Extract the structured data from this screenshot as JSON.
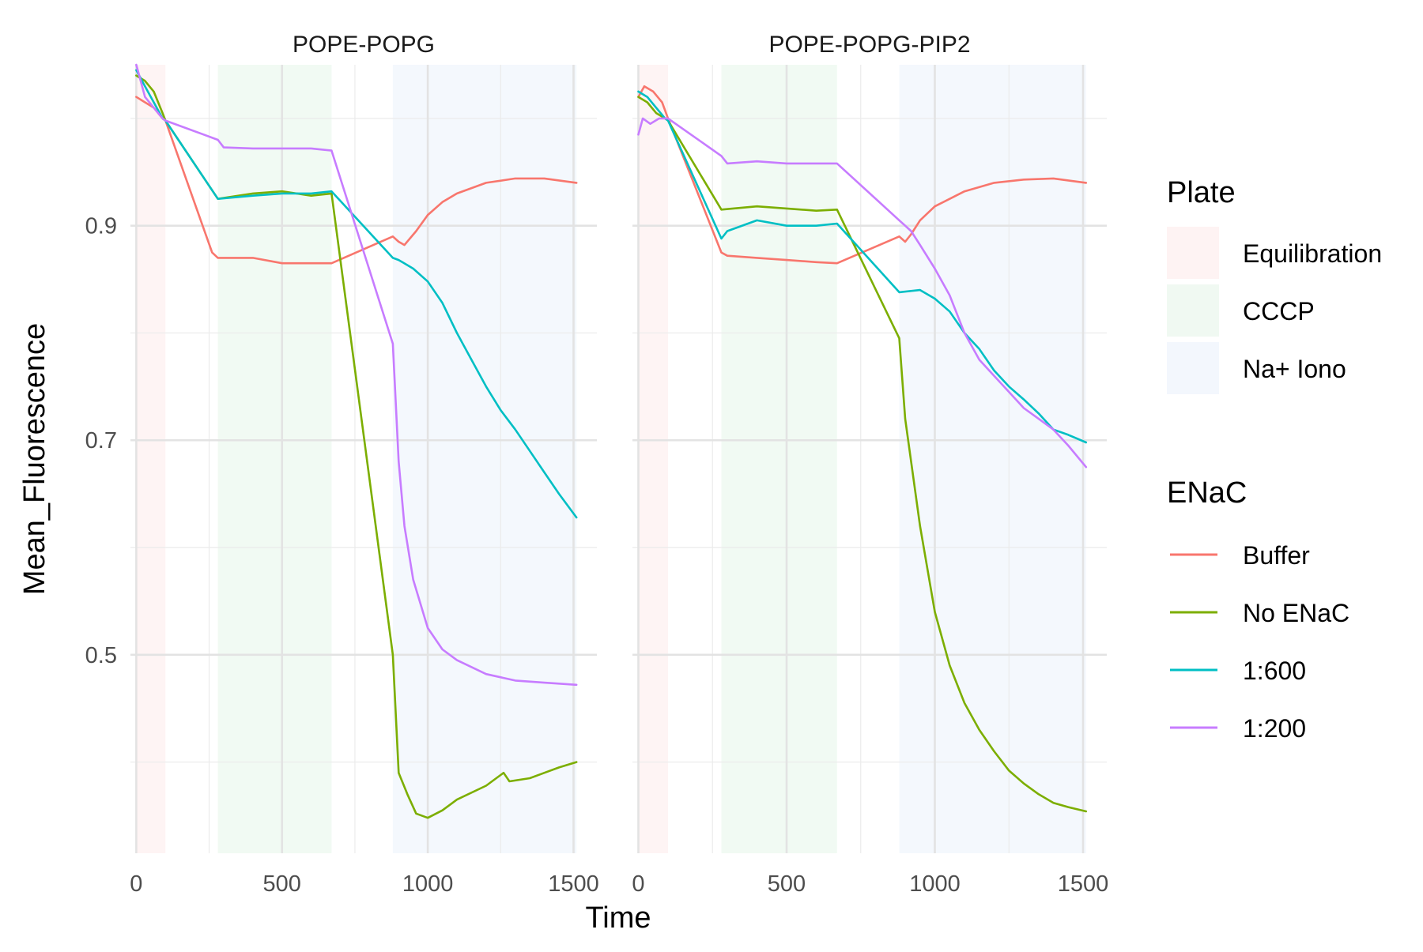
{
  "chart_data": {
    "type": "line",
    "xlabel": "Time",
    "ylabel": "Mean_Fluorescence",
    "xlim": [
      -20,
      1580
    ],
    "ylim": [
      0.315,
      1.05
    ],
    "x_ticks": [
      0,
      500,
      1000,
      1500
    ],
    "y_ticks": [
      0.5,
      0.7,
      0.9
    ],
    "grid": true,
    "legend_position": "right",
    "facets": [
      "POPE-POPG",
      "POPE-POPG-PIP2"
    ],
    "plate": {
      "title": "Plate",
      "entries": [
        {
          "name": "Equilibration",
          "color": "#FDEBEB",
          "x_range": [
            0,
            100
          ]
        },
        {
          "name": "CCCP",
          "color": "#E6F5EA",
          "x_range": [
            280,
            670
          ]
        },
        {
          "name": "Na+ Iono",
          "color": "#EBF2FC",
          "x_range": [
            880,
            1510
          ]
        }
      ]
    },
    "enac": {
      "title": "ENaC",
      "entries": [
        {
          "name": "Buffer",
          "color": "#F8766D"
        },
        {
          "name": "No ENaC",
          "color": "#7CAE00"
        },
        {
          "name": "1:600",
          "color": "#00BFC4"
        },
        {
          "name": "1:200",
          "color": "#C77CFF"
        }
      ]
    },
    "panels": [
      {
        "title": "POPE-POPG",
        "series": [
          {
            "name": "Buffer",
            "color": "#F8766D",
            "points": [
              [
                0,
                1.02
              ],
              [
                30,
                1.015
              ],
              [
                60,
                1.01
              ],
              [
                90,
                1.0
              ],
              [
                100,
                0.998
              ],
              [
                260,
                0.875
              ],
              [
                280,
                0.87
              ],
              [
                400,
                0.87
              ],
              [
                500,
                0.865
              ],
              [
                600,
                0.865
              ],
              [
                670,
                0.865
              ],
              [
                880,
                0.89
              ],
              [
                900,
                0.885
              ],
              [
                920,
                0.882
              ],
              [
                960,
                0.895
              ],
              [
                1000,
                0.91
              ],
              [
                1050,
                0.922
              ],
              [
                1100,
                0.93
              ],
              [
                1200,
                0.94
              ],
              [
                1300,
                0.944
              ],
              [
                1400,
                0.944
              ],
              [
                1510,
                0.94
              ]
            ]
          },
          {
            "name": "No ENaC",
            "color": "#7CAE00",
            "points": [
              [
                0,
                1.04
              ],
              [
                30,
                1.035
              ],
              [
                60,
                1.025
              ],
              [
                90,
                1.005
              ],
              [
                100,
                0.998
              ],
              [
                280,
                0.925
              ],
              [
                400,
                0.93
              ],
              [
                500,
                0.932
              ],
              [
                600,
                0.928
              ],
              [
                670,
                0.93
              ],
              [
                880,
                0.5
              ],
              [
                900,
                0.39
              ],
              [
                930,
                0.37
              ],
              [
                960,
                0.352
              ],
              [
                1000,
                0.348
              ],
              [
                1050,
                0.355
              ],
              [
                1100,
                0.365
              ],
              [
                1200,
                0.378
              ],
              [
                1260,
                0.39
              ],
              [
                1280,
                0.382
              ],
              [
                1350,
                0.385
              ],
              [
                1400,
                0.39
              ],
              [
                1450,
                0.395
              ],
              [
                1510,
                0.4
              ]
            ]
          },
          {
            "name": "1:600",
            "color": "#00BFC4",
            "points": [
              [
                0,
                1.045
              ],
              [
                30,
                1.03
              ],
              [
                60,
                1.015
              ],
              [
                90,
                1.0
              ],
              [
                100,
                0.998
              ],
              [
                280,
                0.925
              ],
              [
                400,
                0.928
              ],
              [
                500,
                0.93
              ],
              [
                600,
                0.93
              ],
              [
                670,
                0.932
              ],
              [
                880,
                0.87
              ],
              [
                900,
                0.868
              ],
              [
                950,
                0.86
              ],
              [
                1000,
                0.848
              ],
              [
                1050,
                0.828
              ],
              [
                1100,
                0.8
              ],
              [
                1150,
                0.775
              ],
              [
                1200,
                0.75
              ],
              [
                1250,
                0.728
              ],
              [
                1300,
                0.71
              ],
              [
                1350,
                0.69
              ],
              [
                1400,
                0.67
              ],
              [
                1450,
                0.65
              ],
              [
                1510,
                0.628
              ]
            ]
          },
          {
            "name": "1:200",
            "color": "#C77CFF",
            "points": [
              [
                0,
                1.05
              ],
              [
                30,
                1.02
              ],
              [
                60,
                1.01
              ],
              [
                90,
                1.0
              ],
              [
                100,
                0.998
              ],
              [
                280,
                0.98
              ],
              [
                300,
                0.973
              ],
              [
                400,
                0.972
              ],
              [
                500,
                0.972
              ],
              [
                600,
                0.972
              ],
              [
                670,
                0.97
              ],
              [
                880,
                0.79
              ],
              [
                900,
                0.68
              ],
              [
                920,
                0.62
              ],
              [
                950,
                0.57
              ],
              [
                1000,
                0.525
              ],
              [
                1050,
                0.505
              ],
              [
                1100,
                0.495
              ],
              [
                1200,
                0.482
              ],
              [
                1300,
                0.476
              ],
              [
                1400,
                0.474
              ],
              [
                1510,
                0.472
              ]
            ]
          }
        ]
      },
      {
        "title": "POPE-POPG-PIP2",
        "series": [
          {
            "name": "Buffer",
            "color": "#F8766D",
            "points": [
              [
                0,
                1.02
              ],
              [
                20,
                1.03
              ],
              [
                50,
                1.025
              ],
              [
                80,
                1.015
              ],
              [
                100,
                1.0
              ],
              [
                280,
                0.875
              ],
              [
                300,
                0.872
              ],
              [
                400,
                0.87
              ],
              [
                500,
                0.868
              ],
              [
                600,
                0.866
              ],
              [
                670,
                0.865
              ],
              [
                880,
                0.89
              ],
              [
                900,
                0.885
              ],
              [
                920,
                0.892
              ],
              [
                950,
                0.905
              ],
              [
                1000,
                0.918
              ],
              [
                1050,
                0.925
              ],
              [
                1100,
                0.932
              ],
              [
                1200,
                0.94
              ],
              [
                1300,
                0.943
              ],
              [
                1400,
                0.944
              ],
              [
                1510,
                0.94
              ]
            ]
          },
          {
            "name": "No ENaC",
            "color": "#7CAE00",
            "points": [
              [
                0,
                1.02
              ],
              [
                30,
                1.015
              ],
              [
                60,
                1.005
              ],
              [
                90,
                1.0
              ],
              [
                100,
                0.998
              ],
              [
                280,
                0.915
              ],
              [
                400,
                0.918
              ],
              [
                500,
                0.916
              ],
              [
                600,
                0.914
              ],
              [
                670,
                0.915
              ],
              [
                880,
                0.795
              ],
              [
                900,
                0.72
              ],
              [
                950,
                0.62
              ],
              [
                1000,
                0.54
              ],
              [
                1050,
                0.49
              ],
              [
                1100,
                0.455
              ],
              [
                1150,
                0.43
              ],
              [
                1200,
                0.41
              ],
              [
                1250,
                0.392
              ],
              [
                1300,
                0.38
              ],
              [
                1350,
                0.37
              ],
              [
                1400,
                0.362
              ],
              [
                1450,
                0.358
              ],
              [
                1510,
                0.354
              ]
            ]
          },
          {
            "name": "1:600",
            "color": "#00BFC4",
            "points": [
              [
                0,
                1.025
              ],
              [
                30,
                1.02
              ],
              [
                60,
                1.01
              ],
              [
                90,
                1.0
              ],
              [
                100,
                0.998
              ],
              [
                280,
                0.888
              ],
              [
                300,
                0.895
              ],
              [
                400,
                0.905
              ],
              [
                500,
                0.9
              ],
              [
                600,
                0.9
              ],
              [
                670,
                0.902
              ],
              [
                880,
                0.838
              ],
              [
                950,
                0.84
              ],
              [
                1000,
                0.832
              ],
              [
                1050,
                0.82
              ],
              [
                1100,
                0.8
              ],
              [
                1150,
                0.785
              ],
              [
                1200,
                0.765
              ],
              [
                1250,
                0.75
              ],
              [
                1300,
                0.738
              ],
              [
                1350,
                0.725
              ],
              [
                1400,
                0.71
              ],
              [
                1450,
                0.705
              ],
              [
                1510,
                0.698
              ]
            ]
          },
          {
            "name": "1:200",
            "color": "#C77CFF",
            "points": [
              [
                0,
                0.985
              ],
              [
                15,
                1.0
              ],
              [
                40,
                0.995
              ],
              [
                70,
                1.0
              ],
              [
                100,
                1.0
              ],
              [
                280,
                0.965
              ],
              [
                300,
                0.958
              ],
              [
                400,
                0.96
              ],
              [
                500,
                0.958
              ],
              [
                600,
                0.958
              ],
              [
                670,
                0.958
              ],
              [
                880,
                0.905
              ],
              [
                920,
                0.895
              ],
              [
                950,
                0.882
              ],
              [
                1000,
                0.86
              ],
              [
                1050,
                0.835
              ],
              [
                1100,
                0.8
              ],
              [
                1150,
                0.775
              ],
              [
                1200,
                0.76
              ],
              [
                1250,
                0.745
              ],
              [
                1300,
                0.73
              ],
              [
                1350,
                0.72
              ],
              [
                1400,
                0.71
              ],
              [
                1450,
                0.695
              ],
              [
                1510,
                0.675
              ]
            ]
          }
        ]
      }
    ]
  }
}
